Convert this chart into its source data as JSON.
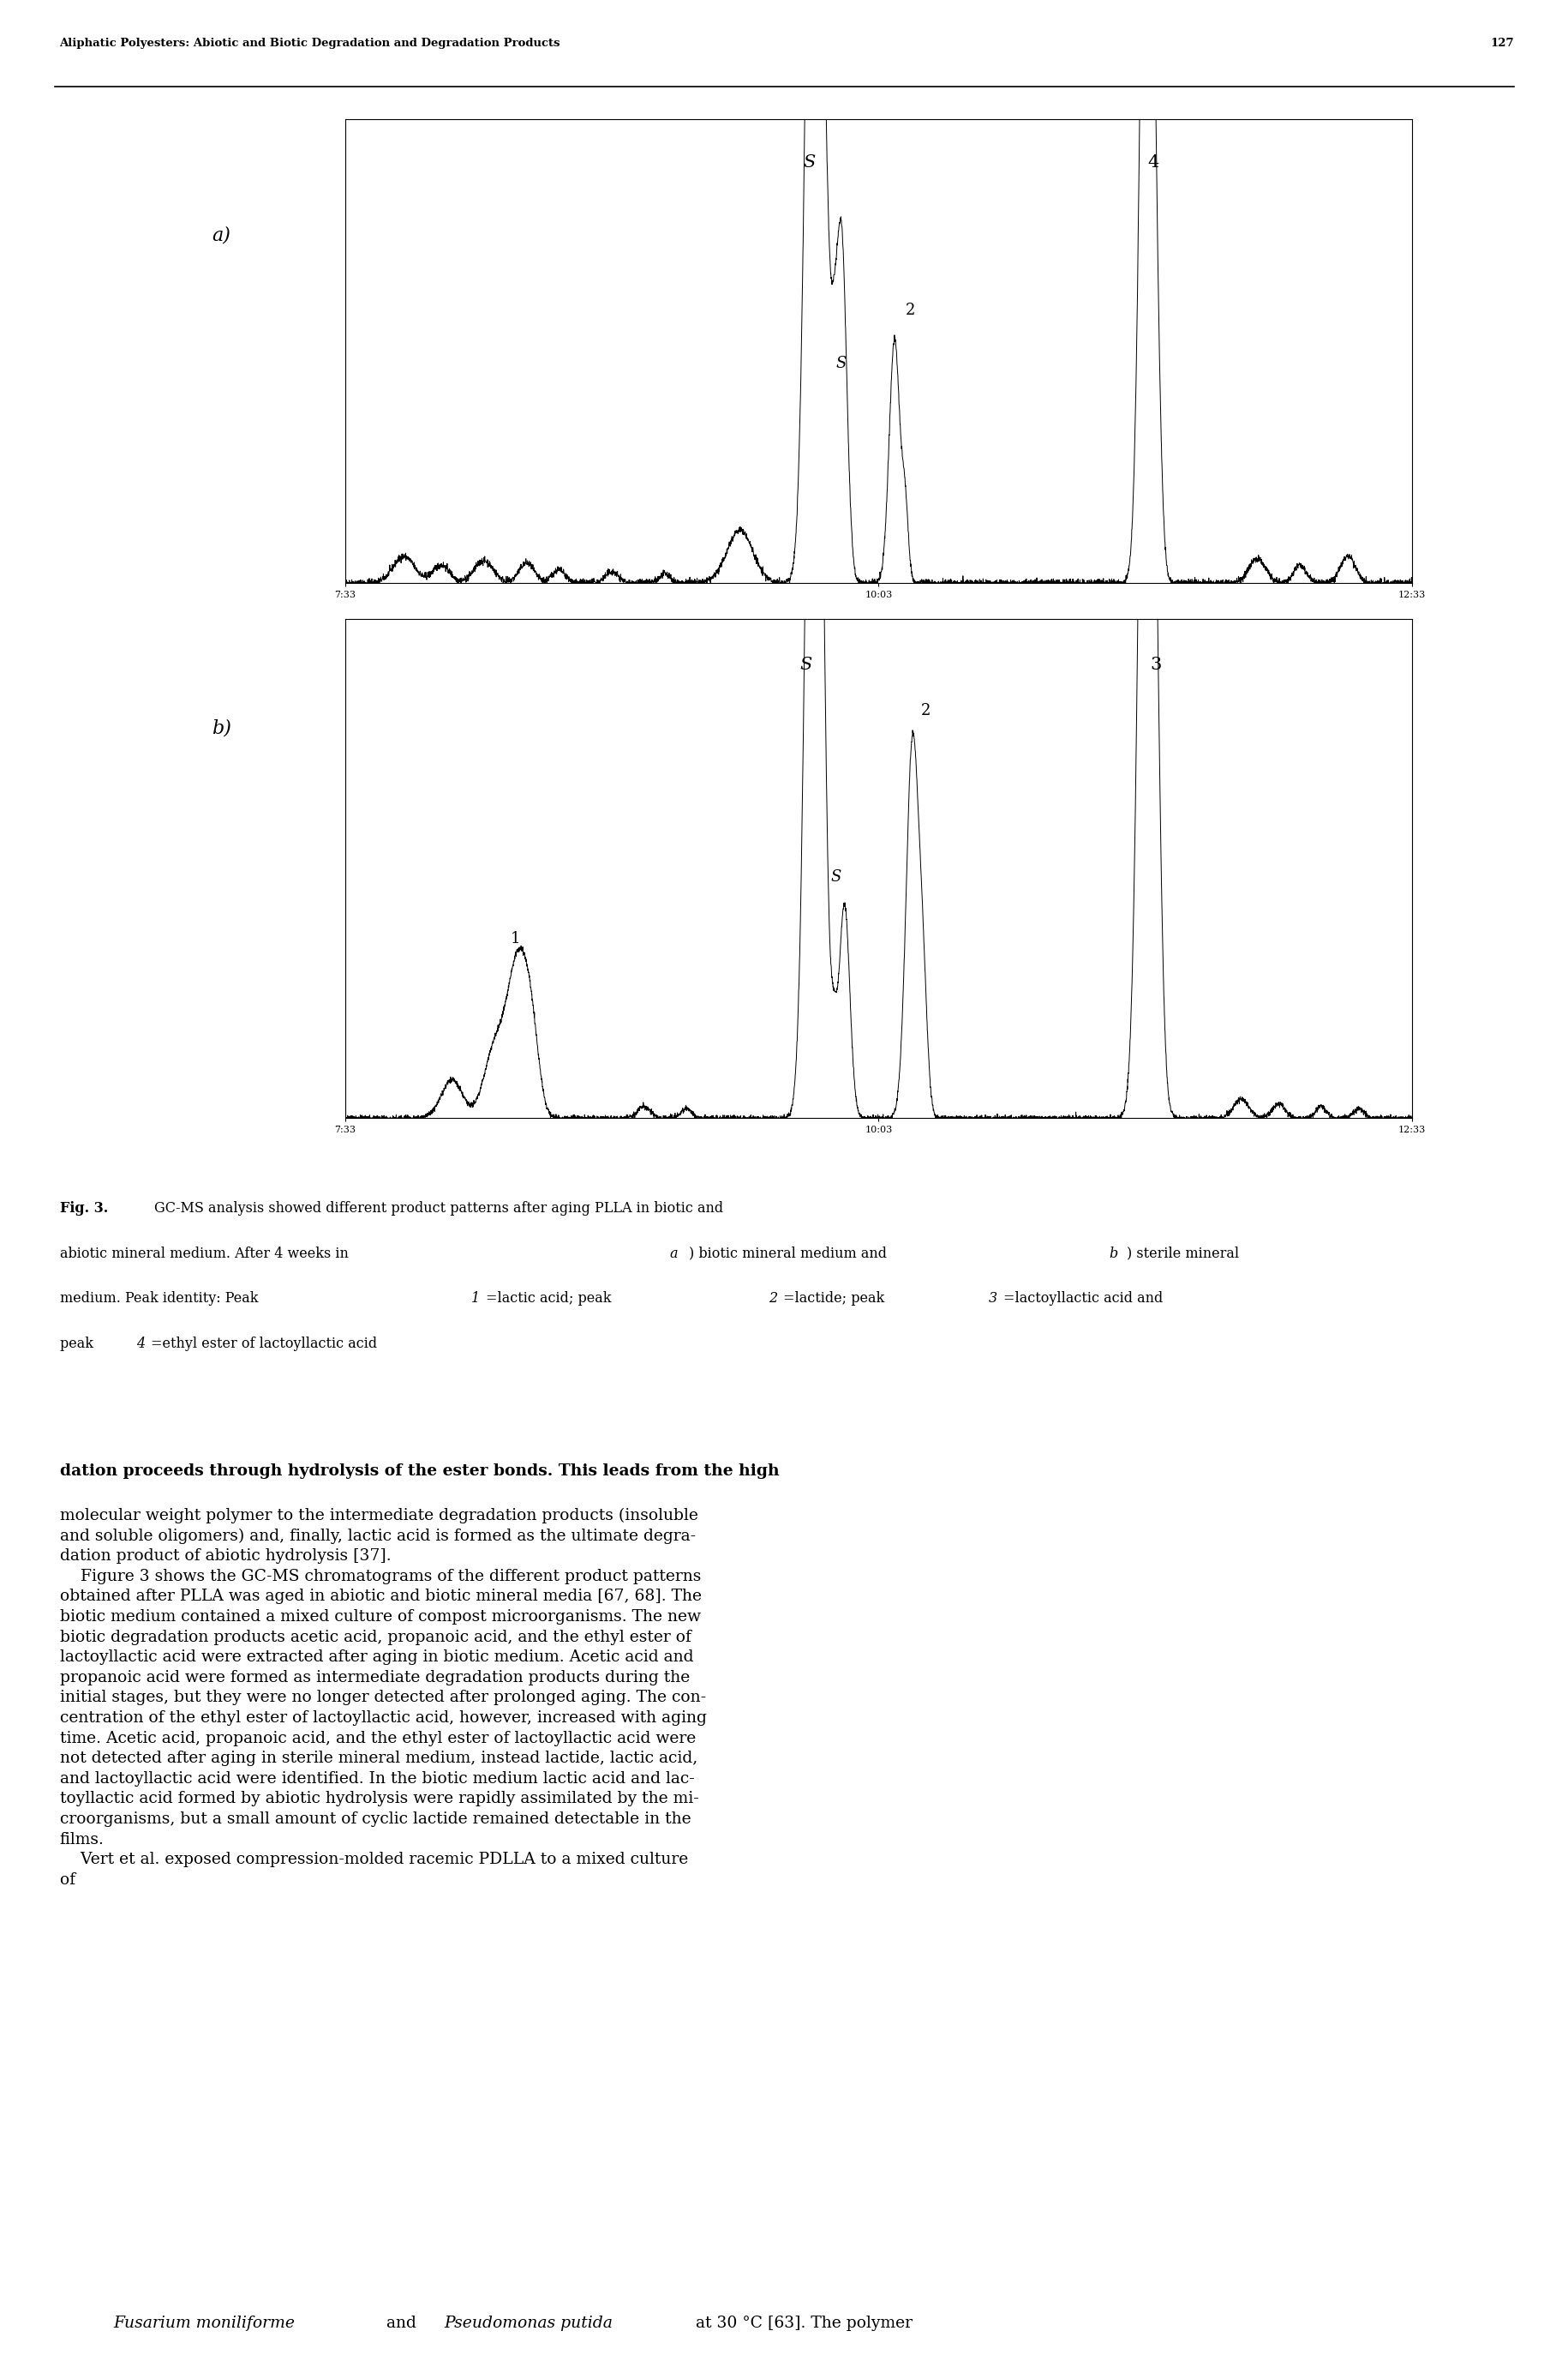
{
  "header_text": "Aliphatic Polyesters: Abiotic and Biotic Degradation and Degradation Products",
  "header_page": "127",
  "panel_a_label": "a)",
  "panel_b_label": "b)",
  "x_ticks": [
    "7:33",
    "10:03",
    "12:33"
  ],
  "caption_bold": "Fig. 3.",
  "caption_normal": " GC-MS analysis showed different product patterns after aging PLLA in biotic and abiotic mineral medium. After 4 weeks in ",
  "caption_italic_a": "a",
  "caption_mid1": ") biotic mineral medium and ",
  "caption_italic_b": "b",
  "caption_mid2": ") sterile mineral medium. Peak identity: Peak ",
  "caption_italic_1": "1",
  "caption_mid3": "=lactic acid; peak ",
  "caption_italic_2": "2",
  "caption_mid4": "=lactide; peak ",
  "caption_italic_3": "3",
  "caption_mid5": "=lactoyllactic acid and peak ",
  "caption_italic_4": "4",
  "caption_end": "=ethyl ester of lactoyllactic acid",
  "body_line1_bold": "dation proceeds through hydrolysis of the ester bonds. This leads from the high",
  "body_text1": "molecular weight polymer to the intermediate degradation products (insoluble\nand soluble oligomers) and, finally, lactic acid is formed as the ultimate degra-\ndation product of abiotic hydrolysis [37].\n    Figure 3 shows the GC-MS chromatograms of the different product patterns\nobtained after PLLA was aged in abiotic and biotic mineral media [67, 68]. The\nbiotic medium contained a mixed culture of compost microorganisms. The new\nbiotic degradation products acetic acid, propanoic acid, and the ethyl ester of\nlactoyllactic acid were extracted after aging in biotic medium. Acetic acid and\npropanoic acid were formed as intermediate degradation products during the\ninitial stages, but they were no longer detected after prolonged aging. The con-\ncentration of the ethyl ester of lactoyllactic acid, however, increased with aging\ntime. Acetic acid, propanoic acid, and the ethyl ester of lactoyllactic acid were\nnot detected after aging in sterile mineral medium, instead lactide, lactic acid,\nand lactoyllactic acid were identified. In the biotic medium lactic acid and lac-\ntoyllactic acid formed by abiotic hydrolysis were rapidly assimilated by the mi-\ncroorganisms, but a small amount of cyclic lactide remained detectable in the\nfilms.\n    Vert et al. exposed compression-molded racemic PDLLA to a mixed culture\nof ",
  "body_italic1": "Fusarium moniliforme",
  "body_mid": " and ",
  "body_italic2": "Pseudomonas putida",
  "body_end": " at 30 °C [63]. The polymer",
  "bg_color": "#ffffff",
  "line_color": "#000000"
}
